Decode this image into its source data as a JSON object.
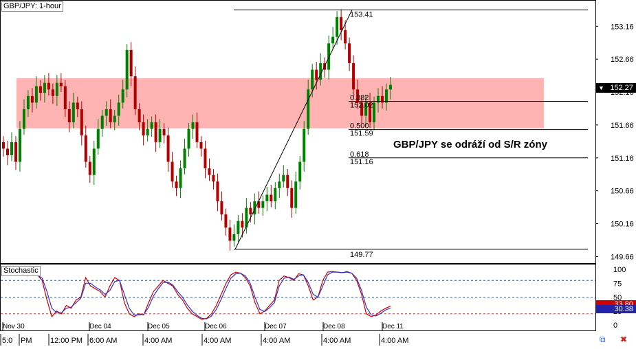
{
  "chart_data": [
    {
      "type": "candlestick",
      "title": "GBP/JPY: 1-hour",
      "ylim": [
        149.56,
        153.56
      ],
      "y_ticks": [
        "153.16",
        "152.66",
        "152.16",
        "151.66",
        "151.16",
        "150.66",
        "150.16",
        "149.66"
      ],
      "y_tick_values": [
        153.16,
        152.66,
        152.16,
        151.66,
        151.16,
        150.66,
        150.16,
        149.66
      ],
      "current_price": "152.27",
      "current_price_value": 152.27,
      "sr_zone": {
        "low": 151.61,
        "high": 152.37
      },
      "swing_high": "153.41",
      "swing_high_value": 153.41,
      "swing_low": "149.77",
      "swing_low_value": 149.77,
      "fib_levels": [
        {
          "ratio": "0.382",
          "price": "152.02",
          "value": 152.02
        },
        {
          "ratio": "0.500",
          "price": "151.59",
          "value": 151.59
        },
        {
          "ratio": "0.618",
          "price": "151.16",
          "value": 151.16
        }
      ],
      "annotation": "GBP/JPY se odráží od S/R zóny",
      "closes": [
        151.3,
        151.2,
        151.4,
        151.1,
        151.6,
        151.9,
        152.1,
        152.0,
        152.25,
        152.15,
        152.3,
        152.2,
        152.1,
        152.3,
        152.25,
        151.9,
        151.7,
        152.0,
        151.9,
        151.5,
        151.1,
        150.9,
        151.3,
        151.6,
        151.8,
        151.9,
        151.7,
        151.8,
        152.0,
        152.2,
        152.8,
        152.4,
        151.9,
        151.7,
        151.5,
        151.6,
        151.7,
        151.4,
        151.6,
        151.5,
        151.1,
        150.8,
        150.7,
        151.0,
        151.3,
        151.6,
        151.7,
        151.4,
        151.3,
        151.0,
        150.9,
        150.8,
        150.5,
        150.3,
        150.1,
        149.9,
        150.0,
        150.2,
        150.1,
        150.4,
        150.3,
        150.5,
        150.4,
        150.5,
        150.6,
        150.5,
        150.7,
        150.8,
        150.9,
        150.7,
        150.4,
        150.8,
        151.1,
        151.6,
        152.2,
        152.5,
        152.35,
        152.6,
        152.5,
        152.9,
        153.0,
        153.3,
        153.1,
        152.9,
        152.6,
        152.2,
        152.0,
        151.8,
        152.0,
        151.7,
        152.0,
        152.1,
        152.0,
        152.2,
        152.27
      ]
    },
    {
      "type": "line",
      "title": "Stochastic",
      "ylim": [
        0,
        100
      ],
      "y_ticks": [
        "100",
        "75",
        "50",
        "25",
        "0"
      ],
      "levels": [
        80,
        50,
        20
      ],
      "series": [
        {
          "label": "33.80",
          "color": "#cc0000",
          "last": 33.8,
          "values": [
            93,
            95,
            94,
            96,
            90,
            88,
            93,
            90,
            80,
            45,
            15,
            25,
            20,
            35,
            30,
            45,
            50,
            85,
            70,
            65,
            60,
            50,
            70,
            85,
            80,
            40,
            20,
            15,
            20,
            18,
            40,
            60,
            70,
            80,
            75,
            70,
            55,
            45,
            30,
            20,
            15,
            10,
            12,
            20,
            35,
            55,
            75,
            90,
            95,
            93,
            85,
            70,
            40,
            20,
            25,
            35,
            45,
            80,
            88,
            85,
            80,
            92,
            90,
            70,
            45,
            50,
            80,
            95,
            96,
            95,
            94,
            96,
            93,
            80,
            55,
            20,
            15,
            18,
            25,
            30,
            33.8
          ]
        },
        {
          "label": "30.38",
          "color": "#3333cc",
          "last": 30.38,
          "values": [
            90,
            92,
            93,
            94,
            92,
            90,
            91,
            90,
            84,
            60,
            30,
            22,
            22,
            30,
            32,
            40,
            48,
            75,
            75,
            68,
            63,
            55,
            62,
            78,
            80,
            55,
            30,
            18,
            18,
            19,
            32,
            52,
            65,
            76,
            77,
            72,
            60,
            50,
            36,
            25,
            17,
            12,
            11,
            16,
            28,
            46,
            66,
            84,
            92,
            93,
            88,
            75,
            50,
            28,
            24,
            31,
            40,
            70,
            84,
            86,
            82,
            88,
            90,
            76,
            55,
            50,
            70,
            90,
            95,
            95,
            94,
            95,
            93,
            84,
            62,
            32,
            18,
            16,
            21,
            27,
            30.38
          ]
        }
      ]
    }
  ],
  "x_labels": [
    "Nov 30",
    "Dec 04",
    "Dec 05",
    "Dec 06",
    "Dec 07",
    "Dec 08",
    "Dec 11"
  ],
  "x_labels_bottom": [
    "5:0",
    "PM",
    "12:00 PM",
    "6:00 AM",
    "4:00 AM",
    "4:00 AM",
    "4:00 AM",
    "4:00 AM",
    "4:00 AM"
  ],
  "colors": {
    "up": "#008000",
    "down": "#b00000",
    "zone": "#ff9999",
    "bg": "#ffffff"
  }
}
